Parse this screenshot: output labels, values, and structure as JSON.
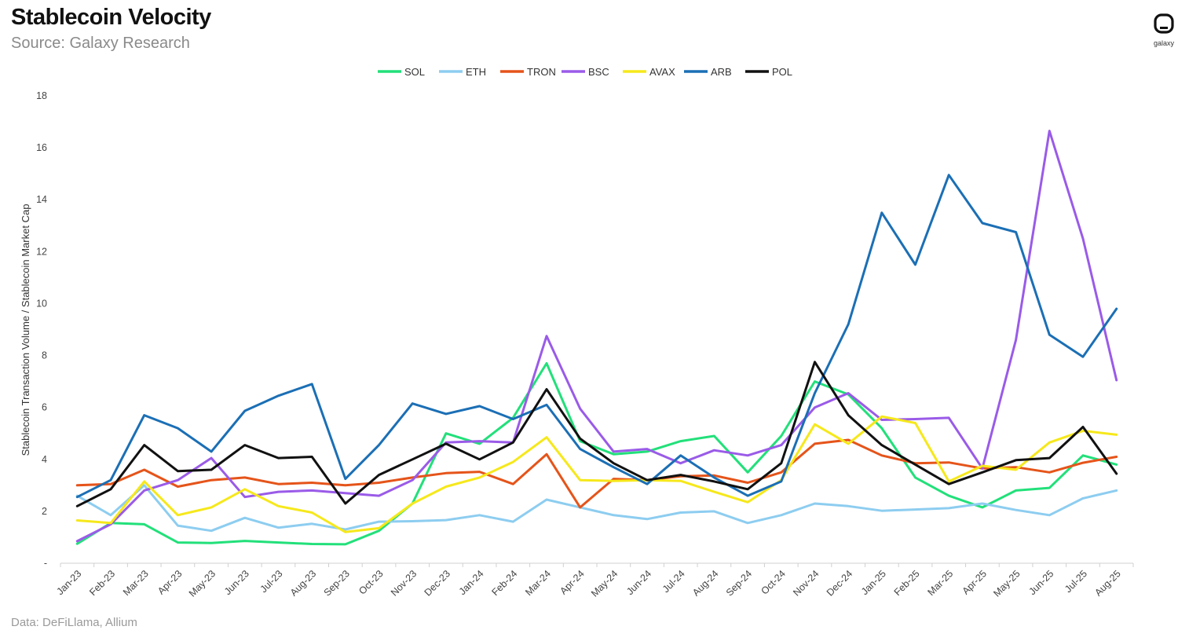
{
  "header": {
    "title": "Stablecoin Velocity",
    "subtitle": "Source: Galaxy Research",
    "logo_text": "galaxy"
  },
  "footer": {
    "data_source": "Data: DeFiLlama, Allium"
  },
  "chart_data": {
    "type": "line",
    "ylabel": "Stablecoin Transaction Volume / Stablecoin Market Cap",
    "xlabel": "",
    "ylim": [
      0,
      18
    ],
    "yticks": [
      "-",
      "2",
      "4",
      "6",
      "8",
      "10",
      "12",
      "14",
      "16",
      "18"
    ],
    "legend_position": "top-center",
    "grid": false,
    "categories": [
      "Jan-23",
      "Feb-23",
      "Mar-23",
      "Apr-23",
      "May-23",
      "Jun-23",
      "Jul-23",
      "Aug-23",
      "Sep-23",
      "Oct-23",
      "Nov-23",
      "Dec-23",
      "Jan-24",
      "Feb-24",
      "Mar-24",
      "Apr-24",
      "May-24",
      "Jun-24",
      "Jul-24",
      "Aug-24",
      "Sep-24",
      "Oct-24",
      "Nov-24",
      "Dec-24",
      "Jan-25",
      "Feb-25",
      "Mar-25",
      "Apr-25",
      "May-25",
      "Jun-25",
      "Jul-25",
      "Aug-25"
    ],
    "series": [
      {
        "name": "SOL",
        "color": "#22e07a",
        "values": [
          0.75,
          1.55,
          1.5,
          0.8,
          0.78,
          0.86,
          0.8,
          0.74,
          0.73,
          1.25,
          2.3,
          5.0,
          4.6,
          5.6,
          7.7,
          4.7,
          4.2,
          4.3,
          4.7,
          4.9,
          3.5,
          4.9,
          7.0,
          6.5,
          5.2,
          3.3,
          2.6,
          2.15,
          2.8,
          2.9,
          4.15,
          3.8
        ]
      },
      {
        "name": "ETH",
        "color": "#8dcdf0",
        "values": [
          2.6,
          1.85,
          3.0,
          1.45,
          1.25,
          1.75,
          1.37,
          1.52,
          1.3,
          1.6,
          1.62,
          1.66,
          1.85,
          1.6,
          2.45,
          2.15,
          1.85,
          1.7,
          1.95,
          2.0,
          1.55,
          1.85,
          2.3,
          2.2,
          2.02,
          2.07,
          2.12,
          2.3,
          2.05,
          1.85,
          2.5,
          2.8
        ]
      },
      {
        "name": "TRON",
        "color": "#e5541a",
        "values": [
          3.0,
          3.05,
          3.6,
          2.95,
          3.2,
          3.3,
          3.05,
          3.1,
          3.0,
          3.1,
          3.3,
          3.47,
          3.52,
          3.05,
          4.2,
          2.15,
          3.25,
          3.2,
          3.35,
          3.38,
          3.1,
          3.5,
          4.6,
          4.75,
          4.15,
          3.85,
          3.88,
          3.65,
          3.7,
          3.5,
          3.87,
          4.1
        ]
      },
      {
        "name": "BSC",
        "color": "#9a5be8",
        "values": [
          0.85,
          1.5,
          2.8,
          3.2,
          4.05,
          2.55,
          2.75,
          2.8,
          2.7,
          2.6,
          3.2,
          4.65,
          4.7,
          4.65,
          8.75,
          5.95,
          4.3,
          4.4,
          3.85,
          4.35,
          4.15,
          4.55,
          6.0,
          6.55,
          5.52,
          5.55,
          5.6,
          3.65,
          8.6,
          16.65,
          12.5,
          7.05
        ]
      },
      {
        "name": "AVAX",
        "color": "#f6e81b",
        "values": [
          1.65,
          1.55,
          3.15,
          1.85,
          2.15,
          2.85,
          2.2,
          1.95,
          1.2,
          1.35,
          2.3,
          2.95,
          3.3,
          3.9,
          4.85,
          3.2,
          3.17,
          3.2,
          3.17,
          2.75,
          2.35,
          3.2,
          5.35,
          4.6,
          5.65,
          5.4,
          3.15,
          3.75,
          3.6,
          4.65,
          5.1,
          4.95
        ]
      },
      {
        "name": "ARB",
        "color": "#1b6fb5",
        "values": [
          2.55,
          3.2,
          5.7,
          5.2,
          4.3,
          5.87,
          6.45,
          6.9,
          3.25,
          4.55,
          6.15,
          5.75,
          6.05,
          5.55,
          6.1,
          4.4,
          3.7,
          3.05,
          4.15,
          3.3,
          2.6,
          3.15,
          6.55,
          9.2,
          13.5,
          11.5,
          14.95,
          13.1,
          12.75,
          8.8,
          7.95,
          9.8
        ]
      },
      {
        "name": "POL",
        "color": "#111111",
        "values": [
          2.2,
          2.85,
          4.55,
          3.55,
          3.6,
          4.55,
          4.05,
          4.1,
          2.3,
          3.4,
          4.0,
          4.6,
          4.0,
          4.65,
          6.7,
          4.8,
          3.85,
          3.2,
          3.4,
          3.15,
          2.85,
          3.85,
          7.75,
          5.7,
          4.55,
          3.8,
          3.05,
          3.5,
          3.97,
          4.05,
          5.25,
          3.45
        ]
      }
    ]
  }
}
